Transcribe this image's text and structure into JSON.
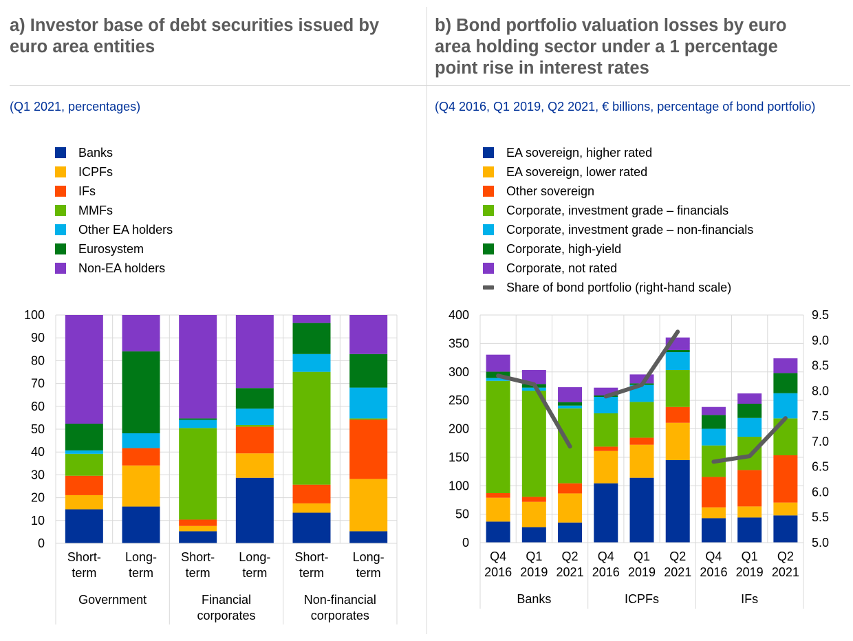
{
  "panel_a": {
    "title_line1": "a) Investor base of debt securities issued by",
    "title_line2": "euro area entities",
    "subtitle": "(Q1 2021, percentages)"
  },
  "panel_b": {
    "title_line1": "b) Bond portfolio valuation losses by euro",
    "title_line2": "area holding sector under a 1 percentage",
    "title_line3": "point rise in interest rates",
    "subtitle": "(Q4 2016, Q1 2019, Q2 2021, € billions, percentage of bond portfolio)"
  },
  "chart_data": [
    {
      "type": "bar",
      "stacked": true,
      "title": "a) Investor base of debt securities issued by euro area entities",
      "subtitle": "(Q1 2021, percentages)",
      "ylabel": "",
      "ylim": [
        0,
        100
      ],
      "yticks": [
        0,
        10,
        20,
        30,
        40,
        50,
        60,
        70,
        80,
        90,
        100
      ],
      "grid": true,
      "legend_position": "top-left",
      "groups": [
        {
          "label": "Government",
          "categories": [
            [
              "Short-",
              "term"
            ],
            [
              "Long-",
              "term"
            ]
          ]
        },
        {
          "label_lines": [
            "Financial",
            "corporates"
          ],
          "categories": [
            [
              "Short-",
              "term"
            ],
            [
              "Long-",
              "term"
            ]
          ]
        },
        {
          "label_lines": [
            "Non-financial",
            "corporates"
          ],
          "categories": [
            [
              "Short-",
              "term"
            ],
            [
              "Long-",
              "term"
            ]
          ]
        }
      ],
      "categories": [
        "Government Short-term",
        "Government Long-term",
        "Financial corporates Short-term",
        "Financial corporates Long-term",
        "Non-financial corporates Short-term",
        "Non-financial corporates Long-term"
      ],
      "series": [
        {
          "name": "Banks",
          "color": "#003299",
          "values": [
            14.9,
            16.1,
            5.3,
            28.7,
            13.4,
            5.3
          ]
        },
        {
          "name": "ICPFs",
          "color": "#ffb400",
          "values": [
            6.2,
            18.0,
            2.3,
            10.7,
            4.1,
            22.9
          ]
        },
        {
          "name": "IFs",
          "color": "#ff4b00",
          "values": [
            8.5,
            7.6,
            2.8,
            11.7,
            8.2,
            26.0
          ]
        },
        {
          "name": "MMFs",
          "color": "#65b800",
          "values": [
            9.6,
            0.0,
            40.1,
            0.7,
            49.4,
            0.5
          ]
        },
        {
          "name": "Other EA holders",
          "color": "#00b1ea",
          "values": [
            1.5,
            6.5,
            3.6,
            7.2,
            7.8,
            13.5
          ]
        },
        {
          "name": "Eurosystem",
          "color": "#007816",
          "values": [
            11.7,
            35.9,
            0.6,
            9.0,
            13.6,
            14.7
          ]
        },
        {
          "name": "Non-EA holders",
          "color": "#8139c6",
          "values": [
            47.6,
            15.9,
            45.3,
            32.0,
            3.5,
            17.1
          ]
        }
      ]
    },
    {
      "type": "bar",
      "stacked": true,
      "title": "b) Bond portfolio valuation losses by euro area holding sector under a 1 percentage point rise in interest rates",
      "subtitle": "(Q4 2016, Q1 2019, Q2 2021, € billions, percentage of bond portfolio)",
      "ylabel": "€ billions",
      "ylim": [
        0,
        400
      ],
      "yticks": [
        0,
        50,
        100,
        150,
        200,
        250,
        300,
        350,
        400
      ],
      "y2label": "percentage of bond portfolio",
      "y2lim": [
        5.0,
        9.5
      ],
      "y2ticks": [
        "5.0",
        "5.5",
        "6.0",
        "6.5",
        "7.0",
        "7.5",
        "8.0",
        "8.5",
        "9.0",
        "9.5"
      ],
      "grid": true,
      "legend_position": "top-left",
      "groups": [
        {
          "label": "Banks",
          "categories": [
            [
              "Q4",
              "2016"
            ],
            [
              "Q1",
              "2019"
            ],
            [
              "Q2",
              "2021"
            ]
          ]
        },
        {
          "label": "ICPFs",
          "categories": [
            [
              "Q4",
              "2016"
            ],
            [
              "Q1",
              "2019"
            ],
            [
              "Q2",
              "2021"
            ]
          ]
        },
        {
          "label": "IFs",
          "categories": [
            [
              "Q4",
              "2016"
            ],
            [
              "Q1",
              "2019"
            ],
            [
              "Q2",
              "2021"
            ]
          ]
        }
      ],
      "categories": [
        "Banks Q4 2016",
        "Banks Q1 2019",
        "Banks Q2 2021",
        "ICPFs Q4 2016",
        "ICPFs Q1 2019",
        "ICPFs Q2 2021",
        "IFs Q4 2016",
        "IFs Q1 2019",
        "IFs Q2 2021"
      ],
      "series": [
        {
          "name": "EA sovereign, higher rated",
          "color": "#003299",
          "values": [
            37.0,
            27.3,
            35.4,
            104.3,
            114.0,
            145.0,
            43.0,
            44.2,
            47.9
          ]
        },
        {
          "name": "EA sovereign, lower rated",
          "color": "#ffb400",
          "values": [
            41.9,
            44.4,
            51.1,
            56.8,
            58.0,
            65.6,
            19.0,
            19.4,
            22.6
          ]
        },
        {
          "name": "Other sovereign",
          "color": "#ff4b00",
          "values": [
            8.1,
            8.8,
            17.8,
            7.6,
            12.4,
            27.8,
            53.5,
            64.0,
            83.0
          ]
        },
        {
          "name": "Corporate, investment grade – financials",
          "color": "#65b800",
          "values": [
            197.3,
            186.5,
            131.7,
            58.5,
            62.9,
            64.9,
            55.3,
            58.5,
            64.8
          ]
        },
        {
          "name": "Corporate, investment grade – non-financials",
          "color": "#00b1ea",
          "values": [
            4.9,
            5.3,
            4.8,
            29.0,
            29.8,
            31.4,
            29.3,
            33.0,
            44.3
          ]
        },
        {
          "name": "Corporate, high-yield",
          "color": "#007816",
          "values": [
            11.2,
            6.4,
            6.1,
            2.4,
            2.8,
            3.7,
            24.2,
            25.0,
            35.4
          ]
        },
        {
          "name": "Corporate, not rated",
          "color": "#8139c6",
          "values": [
            29.9,
            24.6,
            26.2,
            13.7,
            15.7,
            22.1,
            14.1,
            18.1,
            25.9
          ]
        }
      ],
      "line_series": {
        "name": "Share of bond portfolio (right-hand scale)",
        "color": "#5c5c5c",
        "axis": "right",
        "values": [
          8.3,
          8.13,
          6.9,
          7.89,
          8.12,
          9.17,
          6.6,
          6.71,
          7.46
        ]
      }
    }
  ]
}
